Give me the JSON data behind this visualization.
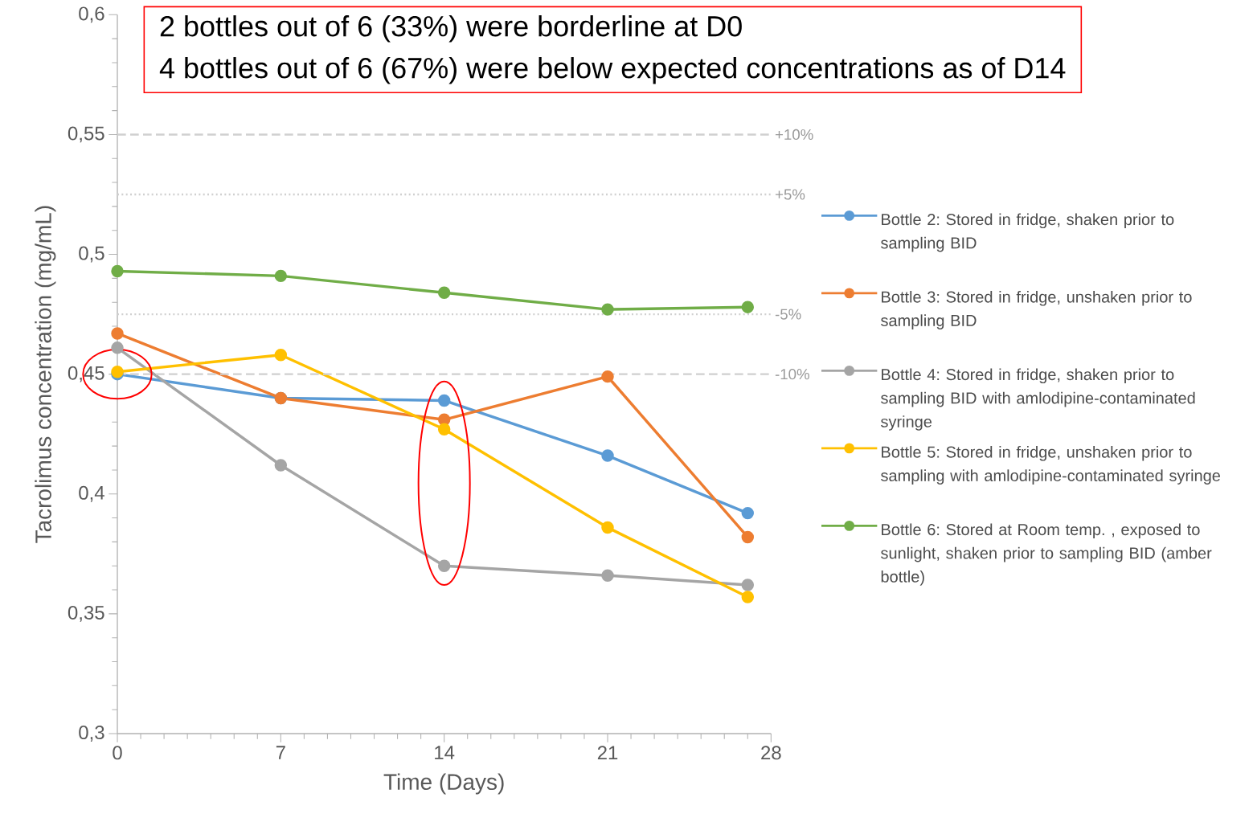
{
  "chart_data": {
    "type": "line",
    "annotations": [
      "2 bottles out of 6 (33%) were borderline at D0",
      "4 bottles out of 6 (67%) were below expected concentrations as of D14",
      "+10%",
      "+5%",
      "-5%",
      "-10%"
    ],
    "xlabel": "Time (Days)",
    "ylabel": "Tacrolimus concentration (mg/mL)",
    "x": [
      0,
      7,
      14,
      21,
      27
    ],
    "series": [
      {
        "name": "Bottle 2: Stored in fridge, shaken prior to sampling BID",
        "color": "#5b9bd5",
        "values": [
          0.45,
          0.44,
          0.439,
          0.416,
          0.392
        ]
      },
      {
        "name": "Bottle 3: Stored in fridge, unshaken prior to sampling BID",
        "color": "#ed7d31",
        "values": [
          0.467,
          0.44,
          0.431,
          0.449,
          0.382
        ]
      },
      {
        "name": "Bottle 4: Stored in fridge, shaken prior to sampling BID with amlodipine-contaminated syringe",
        "color": "#a5a5a5",
        "values": [
          0.461,
          0.412,
          0.37,
          0.366,
          0.362
        ]
      },
      {
        "name": "Bottle 5: Stored in fridge, unshaken prior to sampling with amlodipine-contaminated syringe",
        "color": "#ffc000",
        "values": [
          0.451,
          0.458,
          0.427,
          0.386,
          0.357
        ]
      },
      {
        "name": "Bottle 6: Stored at Room temp. , exposed to sunlight, shaken prior to sampling BID (amber bottle)",
        "color": "#70ad47",
        "values": [
          0.493,
          0.491,
          0.484,
          0.477,
          0.478
        ]
      }
    ],
    "xlim": [
      0,
      28
    ],
    "xticks": [
      0,
      7,
      14,
      21,
      28
    ],
    "ylim": [
      0.3,
      0.6
    ],
    "yticks": [
      {
        "value": 0.3,
        "label": "0,3"
      },
      {
        "value": 0.35,
        "label": "0,35"
      },
      {
        "value": 0.4,
        "label": "0,4"
      },
      {
        "value": 0.45,
        "label": "0,45"
      },
      {
        "value": 0.5,
        "label": "0,5"
      },
      {
        "value": 0.55,
        "label": "0,55"
      },
      {
        "value": 0.6,
        "label": "0,6"
      }
    ],
    "ref_lines": [
      {
        "axis": "y",
        "value": 0.55,
        "color": "#d0d0d0",
        "line_style": "dashed"
      },
      {
        "axis": "y",
        "value": 0.525,
        "color": "#d0d0d0",
        "line_style": "dotted"
      },
      {
        "axis": "y",
        "value": 0.475,
        "color": "#d0d0d0",
        "line_style": "dotted"
      },
      {
        "axis": "y",
        "value": 0.45,
        "color": "#d0d0d0",
        "line_style": "dashed"
      }
    ],
    "legend": "right",
    "marker": "circle",
    "line_style": "solid"
  }
}
